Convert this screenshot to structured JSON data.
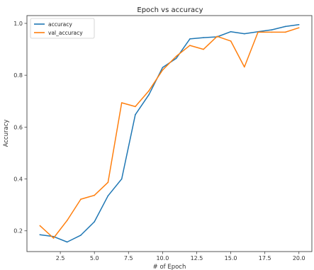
{
  "chart_data": {
    "type": "line",
    "title": "Epoch vs accuracy",
    "xlabel": "# of Epoch",
    "ylabel": "Accuracy",
    "xlim": [
      0.05,
      20.95
    ],
    "ylim": [
      0.12,
      1.03
    ],
    "grid": false,
    "legend_position": "top-left",
    "x": [
      1,
      2,
      3,
      4,
      5,
      6,
      7,
      8,
      9,
      10,
      11,
      12,
      13,
      14,
      15,
      16,
      17,
      18,
      19,
      20
    ],
    "x_ticks": [
      2.5,
      5.0,
      7.5,
      10.0,
      12.5,
      15.0,
      17.5,
      20.0
    ],
    "x_tick_labels": [
      "2.5",
      "5.0",
      "7.5",
      "10.0",
      "12.5",
      "15.0",
      "17.5",
      "20.0"
    ],
    "y_ticks": [
      0.2,
      0.4,
      0.6,
      0.8,
      1.0
    ],
    "y_tick_labels": [
      "0.2",
      "0.4",
      "0.6",
      "0.8",
      "1.0"
    ],
    "series": [
      {
        "name": "accuracy",
        "color": "#1f77b4",
        "values": [
          0.185,
          0.178,
          0.157,
          0.183,
          0.235,
          0.335,
          0.4,
          0.648,
          0.725,
          0.83,
          0.865,
          0.94,
          0.945,
          0.948,
          0.968,
          0.96,
          0.968,
          0.975,
          0.988,
          0.995
        ]
      },
      {
        "name": "val_accuracy",
        "color": "#ff7f0e",
        "values": [
          0.22,
          0.172,
          0.24,
          0.322,
          0.337,
          0.387,
          0.694,
          0.679,
          0.74,
          0.82,
          0.873,
          0.915,
          0.9,
          0.95,
          0.932,
          0.832,
          0.966,
          0.966,
          0.966,
          0.983
        ]
      }
    ]
  }
}
